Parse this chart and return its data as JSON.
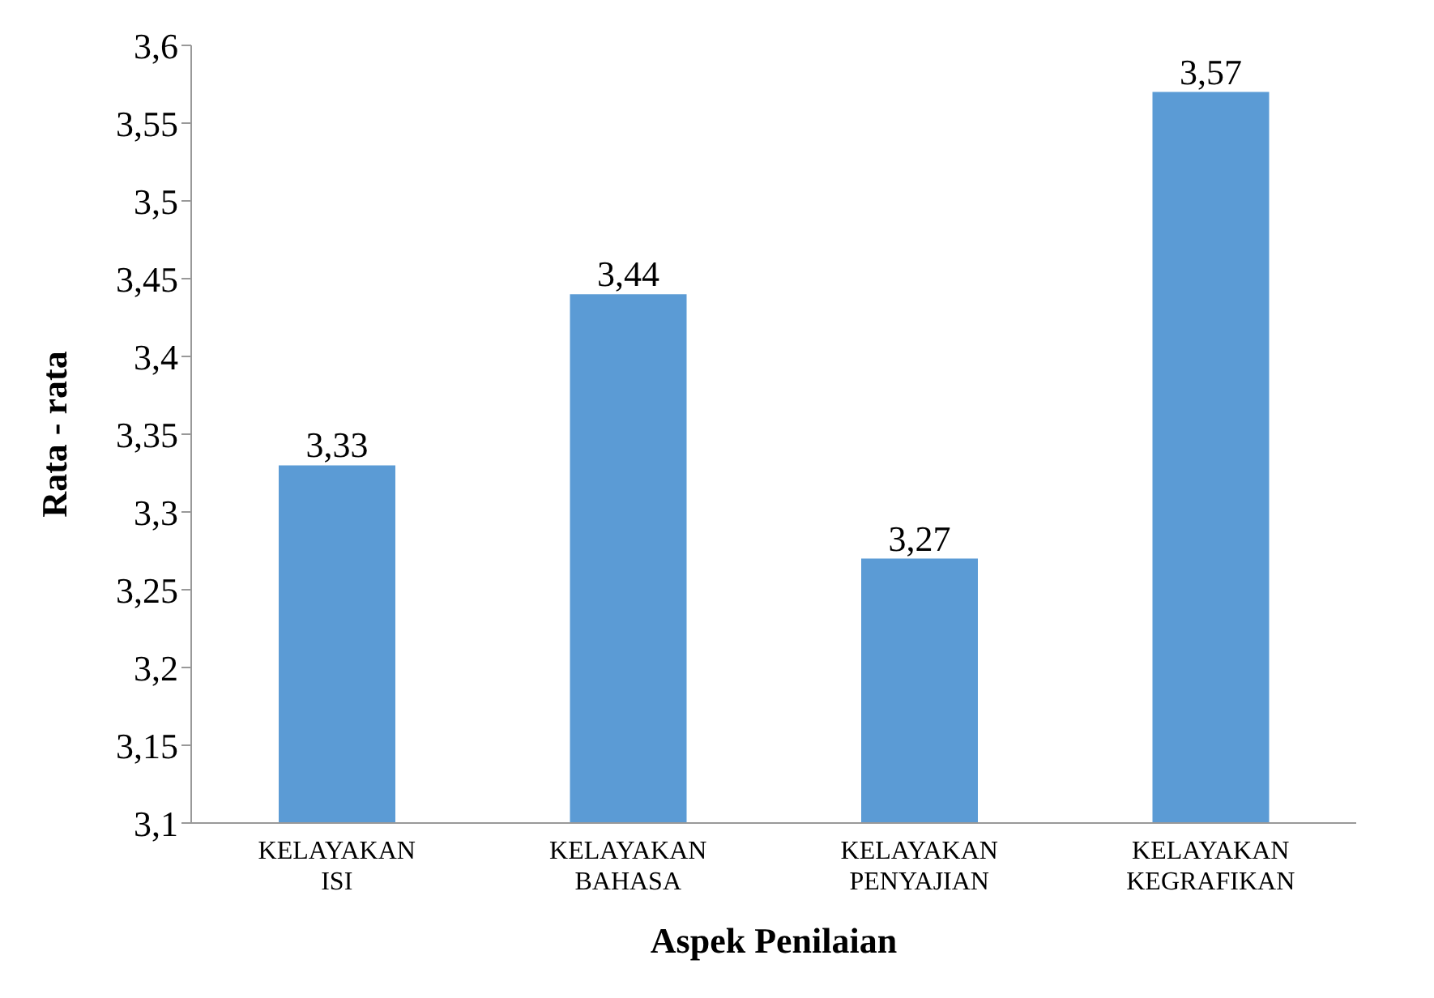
{
  "chart_data": {
    "type": "bar",
    "xlabel": "Aspek Penilaian",
    "ylabel": "Rata - rata",
    "categories": [
      "KELAYAKAN ISI",
      "KELAYAKAN BAHASA",
      "KELAYAKAN PENYAJIAN",
      "KELAYAKAN KEGRAFIKAN"
    ],
    "values": [
      3.33,
      3.44,
      3.27,
      3.57
    ],
    "color": "#5b9bd5",
    "value_labels": [
      "3,33",
      "3,44",
      "3,27",
      "3,57"
    ],
    "ylim": [
      3.1,
      3.6
    ],
    "yticks": [
      {
        "value": 3.1,
        "label": "3,1"
      },
      {
        "value": 3.15,
        "label": "3,15"
      },
      {
        "value": 3.2,
        "label": "3,2"
      },
      {
        "value": 3.25,
        "label": "3,25"
      },
      {
        "value": 3.3,
        "label": "3,3"
      },
      {
        "value": 3.35,
        "label": "3,35"
      },
      {
        "value": 3.4,
        "label": "3,4"
      },
      {
        "value": 3.45,
        "label": "3,45"
      },
      {
        "value": 3.5,
        "label": "3,5"
      },
      {
        "value": 3.55,
        "label": "3,55"
      },
      {
        "value": 3.6,
        "label": "3,6"
      }
    ],
    "grid": false,
    "legend": false
  }
}
